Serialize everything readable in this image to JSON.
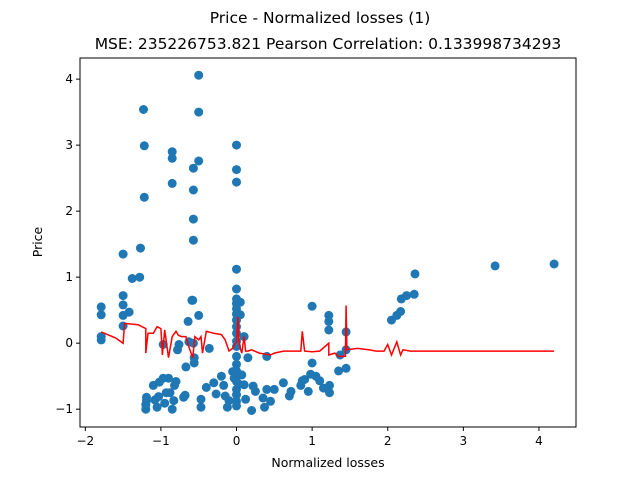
{
  "chart_data": {
    "type": "scatter",
    "title": "Price - Normalized losses (1)",
    "subtitle": "MSE: 235226753.821 Pearson Correlation: 0.133998734293",
    "xlabel": "Normalized losses",
    "ylabel": "Price",
    "xlim": [
      -2.07,
      4.49
    ],
    "ylim": [
      -1.27,
      4.32
    ],
    "xticks": [
      -2,
      -1,
      0,
      1,
      2,
      3,
      4
    ],
    "yticks": [
      -1,
      0,
      1,
      2,
      3,
      4
    ],
    "grid": false,
    "colors": {
      "points": "#1f77b4",
      "line": "#ff0000"
    },
    "points": [
      [
        -1.79,
        0.55
      ],
      [
        -1.79,
        0.43
      ],
      [
        -1.79,
        0.1
      ],
      [
        -1.79,
        0.05
      ],
      [
        -1.5,
        1.35
      ],
      [
        -1.5,
        0.72
      ],
      [
        -1.5,
        0.58
      ],
      [
        -1.5,
        0.42
      ],
      [
        -1.5,
        0.26
      ],
      [
        -1.42,
        0.47
      ],
      [
        -1.38,
        0.98
      ],
      [
        -1.28,
        1.0
      ],
      [
        -1.27,
        1.44
      ],
      [
        -1.23,
        3.54
      ],
      [
        -1.22,
        2.99
      ],
      [
        -1.22,
        2.21
      ],
      [
        -1.2,
        -1.0
      ],
      [
        -1.2,
        -0.93
      ],
      [
        -1.19,
        -0.87
      ],
      [
        -1.19,
        -0.82
      ],
      [
        -1.1,
        -0.64
      ],
      [
        -1.08,
        -0.86
      ],
      [
        -1.05,
        -0.97
      ],
      [
        -1.03,
        -0.81
      ],
      [
        -1.02,
        -0.59
      ],
      [
        -0.97,
        -0.53
      ],
      [
        -0.97,
        -0.02
      ],
      [
        -0.95,
        -0.91
      ],
      [
        -0.93,
        -0.75
      ],
      [
        -0.9,
        -0.53
      ],
      [
        -0.88,
        -0.75
      ],
      [
        -0.85,
        2.9
      ],
      [
        -0.85,
        2.8
      ],
      [
        -0.85,
        2.42
      ],
      [
        -0.85,
        -1.0
      ],
      [
        -0.83,
        -0.87
      ],
      [
        -0.82,
        -0.64
      ],
      [
        -0.8,
        -0.58
      ],
      [
        -0.78,
        -0.1
      ],
      [
        -0.76,
        -0.02
      ],
      [
        -0.7,
        -0.82
      ],
      [
        -0.68,
        -0.79
      ],
      [
        -0.67,
        -0.36
      ],
      [
        -0.64,
        0.33
      ],
      [
        -0.63,
        0.02
      ],
      [
        -0.59,
        0.65
      ],
      [
        -0.58,
        0.65
      ],
      [
        -0.57,
        2.65
      ],
      [
        -0.57,
        2.32
      ],
      [
        -0.57,
        1.88
      ],
      [
        -0.57,
        1.56
      ],
      [
        -0.57,
        0.0
      ],
      [
        -0.56,
        -0.22
      ],
      [
        -0.56,
        -0.3
      ],
      [
        -0.5,
        4.06
      ],
      [
        -0.5,
        3.5
      ],
      [
        -0.5,
        2.76
      ],
      [
        -0.5,
        0.42
      ],
      [
        -0.47,
        -0.85
      ],
      [
        -0.47,
        -0.97
      ],
      [
        -0.4,
        -0.67
      ],
      [
        -0.36,
        -0.08
      ],
      [
        -0.3,
        -0.6
      ],
      [
        -0.27,
        -0.77
      ],
      [
        -0.2,
        -0.5
      ],
      [
        -0.17,
        -0.64
      ],
      [
        -0.15,
        -0.8
      ],
      [
        -0.12,
        -0.97
      ],
      [
        -0.1,
        -0.87
      ],
      [
        -0.05,
        -0.43
      ],
      [
        -0.03,
        -0.53
      ],
      [
        0.0,
        3.0
      ],
      [
        0.0,
        2.63
      ],
      [
        0.0,
        2.44
      ],
      [
        0.0,
        1.12
      ],
      [
        0.0,
        0.82
      ],
      [
        0.0,
        0.67
      ],
      [
        0.0,
        0.6
      ],
      [
        0.0,
        0.52
      ],
      [
        0.0,
        0.44
      ],
      [
        0.0,
        0.35
      ],
      [
        0.0,
        0.25
      ],
      [
        0.0,
        0.15
      ],
      [
        0.0,
        0.03
      ],
      [
        0.0,
        -0.05
      ],
      [
        0.0,
        -0.2
      ],
      [
        0.0,
        -0.32
      ],
      [
        0.0,
        -0.42
      ],
      [
        0.0,
        -0.58
      ],
      [
        0.0,
        -0.7
      ],
      [
        0.0,
        -0.78
      ],
      [
        0.0,
        -0.88
      ],
      [
        0.0,
        -0.95
      ],
      [
        0.03,
        -0.62
      ],
      [
        0.05,
        0.62
      ],
      [
        0.05,
        0.43
      ],
      [
        0.07,
        -0.48
      ],
      [
        0.1,
        0.1
      ],
      [
        0.1,
        -0.63
      ],
      [
        0.12,
        -0.85
      ],
      [
        0.15,
        -0.22
      ],
      [
        0.2,
        -1.02
      ],
      [
        0.22,
        -0.65
      ],
      [
        0.25,
        -0.73
      ],
      [
        0.35,
        -0.83
      ],
      [
        0.37,
        -0.97
      ],
      [
        0.4,
        -0.7
      ],
      [
        0.4,
        -0.2
      ],
      [
        0.45,
        -0.88
      ],
      [
        0.5,
        -0.7
      ],
      [
        0.62,
        -0.6
      ],
      [
        0.7,
        -0.8
      ],
      [
        0.72,
        -0.73
      ],
      [
        0.85,
        -0.64
      ],
      [
        0.87,
        -0.57
      ],
      [
        0.9,
        -0.55
      ],
      [
        0.95,
        -0.73
      ],
      [
        0.98,
        -0.47
      ],
      [
        1.05,
        -0.5
      ],
      [
        1.1,
        -0.57
      ],
      [
        1.0,
        0.56
      ],
      [
        1.0,
        -0.3
      ],
      [
        1.15,
        -0.68
      ],
      [
        1.22,
        0.42
      ],
      [
        1.22,
        0.33
      ],
      [
        1.22,
        0.2
      ],
      [
        1.23,
        -0.64
      ],
      [
        1.23,
        -0.75
      ],
      [
        1.35,
        -0.42
      ],
      [
        1.37,
        -0.18
      ],
      [
        1.45,
        0.17
      ],
      [
        1.45,
        -0.1
      ],
      [
        1.45,
        -0.38
      ],
      [
        2.05,
        0.35
      ],
      [
        2.12,
        0.42
      ],
      [
        2.17,
        0.48
      ],
      [
        2.18,
        0.67
      ],
      [
        2.25,
        0.72
      ],
      [
        2.35,
        0.74
      ],
      [
        2.36,
        1.05
      ],
      [
        3.42,
        1.17
      ],
      [
        4.2,
        1.2
      ]
    ],
    "fit_line": [
      [
        -1.79,
        0.17
      ],
      [
        -1.6,
        0.08
      ],
      [
        -1.5,
        0.0
      ],
      [
        -1.48,
        0.3
      ],
      [
        -1.3,
        0.28
      ],
      [
        -1.25,
        0.25
      ],
      [
        -1.2,
        0.22
      ],
      [
        -1.2,
        -0.15
      ],
      [
        -1.17,
        0.15
      ],
      [
        -1.1,
        0.15
      ],
      [
        -1.05,
        0.25
      ],
      [
        -1.0,
        0.22
      ],
      [
        -0.98,
        -0.18
      ],
      [
        -0.95,
        0.2
      ],
      [
        -0.9,
        -0.22
      ],
      [
        -0.85,
        0.1
      ],
      [
        -0.8,
        0.18
      ],
      [
        -0.77,
        0.12
      ],
      [
        -0.73,
        0.1
      ],
      [
        -0.67,
        0.1
      ],
      [
        -0.64,
        -0.02
      ],
      [
        -0.58,
        -0.22
      ],
      [
        -0.55,
        0.1
      ],
      [
        -0.5,
        0.05
      ],
      [
        -0.47,
        0.1
      ],
      [
        -0.45,
        -0.15
      ],
      [
        -0.4,
        0.18
      ],
      [
        -0.3,
        0.15
      ],
      [
        -0.2,
        0.13
      ],
      [
        -0.15,
        0.05
      ],
      [
        -0.1,
        -0.12
      ],
      [
        -0.05,
        -0.08
      ],
      [
        0.0,
        0.03
      ],
      [
        0.02,
        0.4
      ],
      [
        0.03,
        0.05
      ],
      [
        0.05,
        -0.08
      ],
      [
        0.07,
        -0.15
      ],
      [
        0.1,
        0.1
      ],
      [
        0.12,
        -0.12
      ],
      [
        0.15,
        -0.12
      ],
      [
        0.2,
        -0.1
      ],
      [
        0.3,
        -0.15
      ],
      [
        0.45,
        -0.18
      ],
      [
        0.5,
        -0.15
      ],
      [
        0.62,
        -0.12
      ],
      [
        0.85,
        -0.12
      ],
      [
        0.87,
        0.18
      ],
      [
        0.9,
        -0.12
      ],
      [
        1.0,
        -0.13
      ],
      [
        1.1,
        -0.12
      ],
      [
        1.22,
        0.0
      ],
      [
        1.22,
        -0.18
      ],
      [
        1.3,
        -0.15
      ],
      [
        1.35,
        -0.2
      ],
      [
        1.44,
        -0.2
      ],
      [
        1.45,
        0.57
      ],
      [
        1.46,
        -0.1
      ],
      [
        1.6,
        -0.08
      ],
      [
        1.75,
        -0.1
      ],
      [
        1.85,
        -0.12
      ],
      [
        1.95,
        -0.12
      ],
      [
        2.0,
        -0.02
      ],
      [
        2.05,
        -0.18
      ],
      [
        2.12,
        0.02
      ],
      [
        2.17,
        -0.18
      ],
      [
        2.2,
        -0.1
      ],
      [
        2.3,
        -0.12
      ],
      [
        3.0,
        -0.12
      ],
      [
        4.2,
        -0.12
      ]
    ]
  }
}
